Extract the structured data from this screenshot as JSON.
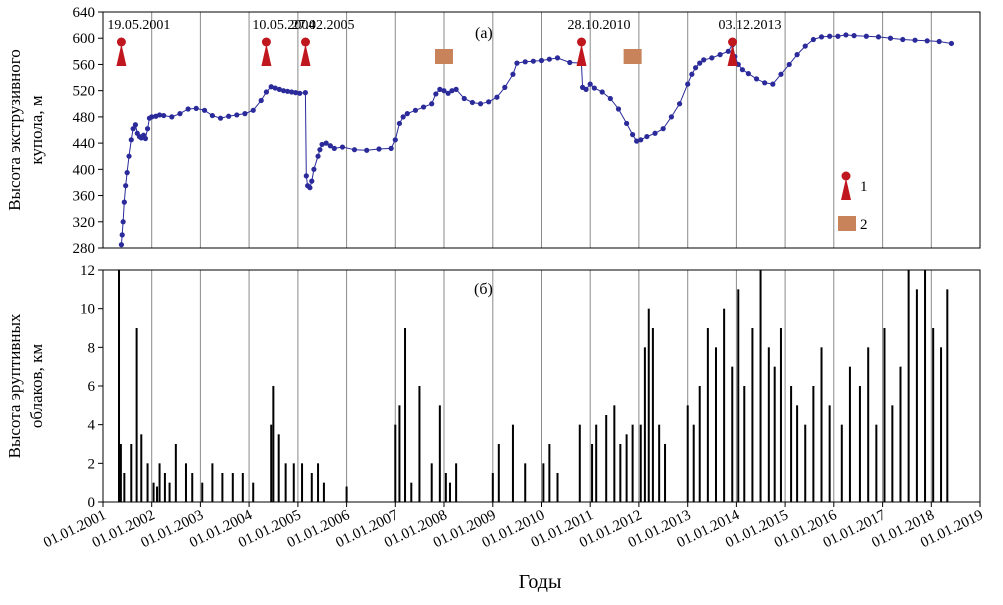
{
  "chart_data": [
    {
      "type": "line",
      "panel_label": "(а)",
      "ylabel": "Высота экструзивного купола, м",
      "ylim": [
        280,
        640
      ],
      "yticks": [
        "280",
        "320",
        "360",
        "400",
        "440",
        "480",
        "520",
        "560",
        "600",
        "640"
      ],
      "xlim": [
        "2001-01-01",
        "2019-01-01"
      ],
      "series": [
        {
          "x": [
            "2001-05-19",
            "2001-05-25",
            "2001-06-01",
            "2001-06-10",
            "2001-06-20",
            "2001-07-01",
            "2001-07-15",
            "2001-08-01",
            "2001-08-15",
            "2001-09-01",
            "2001-09-15",
            "2001-10-01",
            "2001-10-15",
            "2001-11-01",
            "2001-11-15",
            "2001-12-01",
            "2001-12-15",
            "2002-01-01",
            "2002-02-01",
            "2002-03-01",
            "2002-04-01",
            "2002-06-01",
            "2002-08-01",
            "2002-10-01",
            "2002-12-01",
            "2003-02-01",
            "2003-04-01",
            "2003-06-01",
            "2003-08-01",
            "2003-10-01",
            "2003-12-01",
            "2004-02-01",
            "2004-04-01",
            "2004-05-10",
            "2004-06-15",
            "2004-07-15",
            "2004-08-15",
            "2004-09-15",
            "2004-10-15",
            "2004-11-15",
            "2004-12-15",
            "2005-01-15",
            "2005-02-26",
            "2005-03-05",
            "2005-03-15",
            "2005-04-01",
            "2005-04-15",
            "2005-05-01",
            "2005-06-01",
            "2005-06-15",
            "2005-07-01",
            "2005-08-01",
            "2005-09-01",
            "2005-10-01",
            "2005-12-01",
            "2006-03-01",
            "2006-06-01",
            "2006-09-01",
            "2006-12-01",
            "2007-01-01",
            "2007-02-01",
            "2007-03-01",
            "2007-04-01",
            "2007-06-01",
            "2007-08-01",
            "2007-10-01",
            "2007-11-01",
            "2007-12-01",
            "2008-01-01",
            "2008-02-01",
            "2008-03-01",
            "2008-04-01",
            "2008-06-01",
            "2008-08-01",
            "2008-10-01",
            "2008-12-01",
            "2009-02-01",
            "2009-04-01",
            "2009-06-01",
            "2009-07-01",
            "2009-09-01",
            "2009-11-01",
            "2010-01-01",
            "2010-03-01",
            "2010-05-01",
            "2010-08-01",
            "2010-10-27",
            "2010-11-05",
            "2010-12-01",
            "2011-01-01",
            "2011-02-01",
            "2011-04-01",
            "2011-06-01",
            "2011-08-01",
            "2011-10-01",
            "2011-11-15",
            "2011-12-15",
            "2012-01-15",
            "2012-03-01",
            "2012-05-01",
            "2012-07-01",
            "2012-09-01",
            "2012-11-01",
            "2013-01-01",
            "2013-02-01",
            "2013-03-01",
            "2013-04-01",
            "2013-05-01",
            "2013-07-01",
            "2013-09-01",
            "2013-11-01",
            "2013-12-03",
            "2013-12-20",
            "2014-01-15",
            "2014-02-15",
            "2014-04-01",
            "2014-06-01",
            "2014-08-01",
            "2014-10-01",
            "2014-12-01",
            "2015-02-01",
            "2015-04-01",
            "2015-06-01",
            "2015-08-01",
            "2015-10-01",
            "2015-12-01",
            "2016-02-01",
            "2016-04-01",
            "2016-06-01",
            "2016-09-01",
            "2016-12-01",
            "2017-03-01",
            "2017-06-01",
            "2017-09-01",
            "2017-12-01",
            "2018-03-01",
            "2018-06-01"
          ],
          "y": [
            285,
            300,
            320,
            350,
            375,
            395,
            420,
            445,
            462,
            468,
            455,
            450,
            448,
            452,
            447,
            462,
            478,
            480,
            481,
            483,
            482,
            480,
            485,
            492,
            493,
            490,
            482,
            478,
            481,
            483,
            485,
            490,
            505,
            518,
            526,
            524,
            522,
            520,
            519,
            518,
            517,
            516,
            517,
            390,
            375,
            372,
            382,
            400,
            420,
            430,
            438,
            440,
            436,
            432,
            434,
            430,
            429,
            431,
            432,
            445,
            470,
            480,
            485,
            490,
            495,
            500,
            515,
            522,
            520,
            516,
            520,
            522,
            508,
            502,
            500,
            503,
            510,
            525,
            545,
            562,
            564,
            565,
            566,
            568,
            570,
            563,
            562,
            525,
            522,
            530,
            524,
            518,
            508,
            492,
            470,
            453,
            443,
            445,
            450,
            455,
            462,
            480,
            500,
            530,
            545,
            555,
            562,
            567,
            570,
            575,
            580,
            590,
            572,
            560,
            552,
            546,
            538,
            532,
            530,
            545,
            560,
            575,
            588,
            598,
            602,
            603,
            603,
            605,
            604,
            603,
            602,
            600,
            598,
            597,
            596,
            595,
            592
          ]
        }
      ],
      "annotations": [
        {
          "date": "2001-05-19",
          "text": "19.05.2001"
        },
        {
          "date": "2004-05-10",
          "text": "10.05.2004"
        },
        {
          "date": "2005-02-27",
          "text": "27.02.2005"
        },
        {
          "date": "2010-10-28",
          "text": "28.10.2010"
        },
        {
          "date": "2013-12-03",
          "text": "03.12.2013"
        }
      ],
      "markers_type2": [
        "2008-01-01",
        "2011-11-15"
      ],
      "legend": [
        {
          "symbol": "explosion-marker",
          "label": "1"
        },
        {
          "symbol": "square-marker",
          "label": "2"
        }
      ],
      "line_color": "#2a2a9a",
      "marker_color": "#c0171f",
      "square_color": "#c8835a",
      "grid": "vertical"
    },
    {
      "type": "bar",
      "panel_label": "(б)",
      "ylabel": "Высота эруптивных облаков, км",
      "ylim": [
        0,
        12
      ],
      "yticks": [
        "0",
        "2",
        "4",
        "6",
        "8",
        "10",
        "12"
      ],
      "xlim": [
        "2001-01-01",
        "2019-01-01"
      ],
      "x": [
        "2001-05-01",
        "2001-05-15",
        "2001-06-10",
        "2001-08-01",
        "2001-09-10",
        "2001-10-15",
        "2001-12-01",
        "2002-01-15",
        "2002-02-10",
        "2002-03-01",
        "2002-04-10",
        "2002-05-15",
        "2002-07-01",
        "2002-09-15",
        "2002-11-01",
        "2003-01-15",
        "2003-04-01",
        "2003-06-15",
        "2003-09-01",
        "2003-11-15",
        "2004-02-01",
        "2004-06-15",
        "2004-07-01",
        "2004-08-10",
        "2004-10-01",
        "2004-12-01",
        "2005-02-01",
        "2005-04-15",
        "2005-06-01",
        "2005-07-15",
        "2006-01-01",
        "2007-01-01",
        "2007-02-01",
        "2007-03-15",
        "2007-05-01",
        "2007-07-01",
        "2007-10-01",
        "2007-12-01",
        "2008-01-15",
        "2008-02-15",
        "2008-04-01",
        "2009-01-01",
        "2009-02-15",
        "2009-06-01",
        "2009-09-01",
        "2010-01-15",
        "2010-03-01",
        "2010-05-01",
        "2010-10-15",
        "2011-01-15",
        "2011-02-15",
        "2011-05-01",
        "2011-07-01",
        "2011-08-15",
        "2011-10-01",
        "2011-11-15",
        "2012-01-15",
        "2012-02-15",
        "2012-03-15",
        "2012-04-15",
        "2012-06-01",
        "2012-07-15",
        "2013-01-01",
        "2013-02-15",
        "2013-04-01",
        "2013-06-01",
        "2013-08-01",
        "2013-10-01",
        "2013-12-01",
        "2014-01-15",
        "2014-03-01",
        "2014-05-01",
        "2014-07-01",
        "2014-09-01",
        "2014-10-15",
        "2014-12-01",
        "2015-02-15",
        "2015-04-01",
        "2015-06-01",
        "2015-08-01",
        "2015-10-01",
        "2015-12-01",
        "2016-03-01",
        "2016-05-01",
        "2016-07-15",
        "2016-09-15",
        "2016-11-15",
        "2017-01-15",
        "2017-03-15",
        "2017-05-15",
        "2017-07-15",
        "2017-09-15",
        "2017-11-15",
        "2018-01-15",
        "2018-03-15",
        "2018-05-01"
      ],
      "values": [
        12,
        3,
        1.5,
        3,
        9,
        3.5,
        2,
        1,
        0.8,
        2,
        1.5,
        1,
        3,
        2,
        1.5,
        1,
        2,
        1.5,
        1.5,
        1.5,
        1,
        4,
        6,
        3.5,
        2,
        2,
        2,
        1.5,
        2,
        1,
        0.8,
        4,
        5,
        9,
        1,
        6,
        2,
        5,
        1.5,
        1,
        2,
        1.5,
        3,
        4,
        2,
        2,
        3,
        1.5,
        4,
        3,
        4,
        4.5,
        5,
        3,
        3.5,
        4,
        4,
        8,
        10,
        9,
        4,
        3,
        5,
        4,
        6,
        9,
        8,
        10,
        7,
        11,
        6,
        9,
        12,
        8,
        7,
        9,
        6,
        5,
        4,
        6,
        8,
        5,
        4,
        7,
        6,
        8,
        4,
        9,
        5,
        7,
        12,
        11,
        12,
        9,
        8,
        11
      ],
      "bar_color": "#000000",
      "grid": "vertical"
    }
  ],
  "x_axis": {
    "label": "Годы",
    "ticks": [
      "01.01.2001",
      "01.01.2002",
      "01.01.2003",
      "01.01.2004",
      "01.01.2005",
      "01.01.2006",
      "01.01.2007",
      "01.01.2008",
      "01.01.2009",
      "01.01.2010",
      "01.01.2011",
      "01.01.2012",
      "01.01.2013",
      "01.01.2014",
      "01.01.2015",
      "01.01.2016",
      "01.01.2017",
      "01.01.2018",
      "01.01.2019"
    ]
  }
}
